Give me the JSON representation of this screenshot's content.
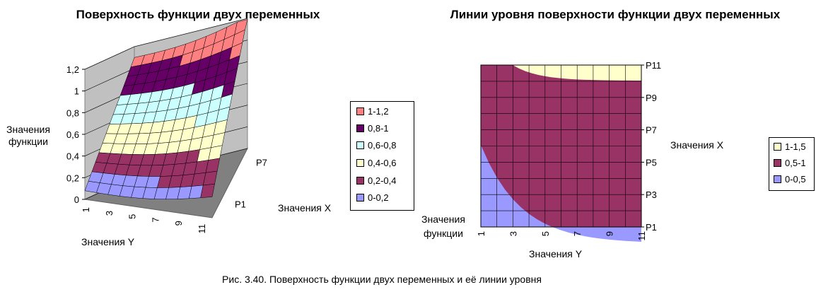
{
  "caption": "Рис. 3.40. Поверхность функции двух переменных и её линии уровня",
  "chart_data": [
    {
      "type": "surface",
      "title": "Поверхность функции двух переменных",
      "zlabel": "Значения функции",
      "ylabel": "Значения Y",
      "xlabel": "Значения X",
      "z_ticks": [
        "0",
        "0,2",
        "0,4",
        "0,6",
        "0,8",
        "1",
        "1,2"
      ],
      "zlim": [
        0,
        1.2
      ],
      "y_ticks": [
        "1",
        "3",
        "5",
        "7",
        "9",
        "11"
      ],
      "x_ticks": [
        "P1",
        "P7"
      ],
      "legend": [
        {
          "label": "1-1,2",
          "color": "#ff8080"
        },
        {
          "label": "0,8-1",
          "color": "#660066"
        },
        {
          "label": "0,6-0,8",
          "color": "#ccffff"
        },
        {
          "label": "0,4-0,6",
          "color": "#ffffcc"
        },
        {
          "label": "0,2-0,4",
          "color": "#993366"
        },
        {
          "label": "0-0,2",
          "color": "#9999ff"
        }
      ]
    },
    {
      "type": "contour",
      "title": "Линии уровня поверхности функции двух переменных",
      "ylabel": "Значения функции",
      "xlabel": "Значения Y",
      "y2label": "Значения X",
      "x_ticks": [
        "1",
        "3",
        "5",
        "7",
        "9",
        "11"
      ],
      "y_ticks": [
        "P1",
        "P3",
        "P5",
        "P7",
        "P9",
        "P11"
      ],
      "legend": [
        {
          "label": "1-1,5",
          "color": "#ffffcc"
        },
        {
          "label": "0,5-1",
          "color": "#993366"
        },
        {
          "label": "0-0,5",
          "color": "#9999ff"
        }
      ]
    }
  ]
}
